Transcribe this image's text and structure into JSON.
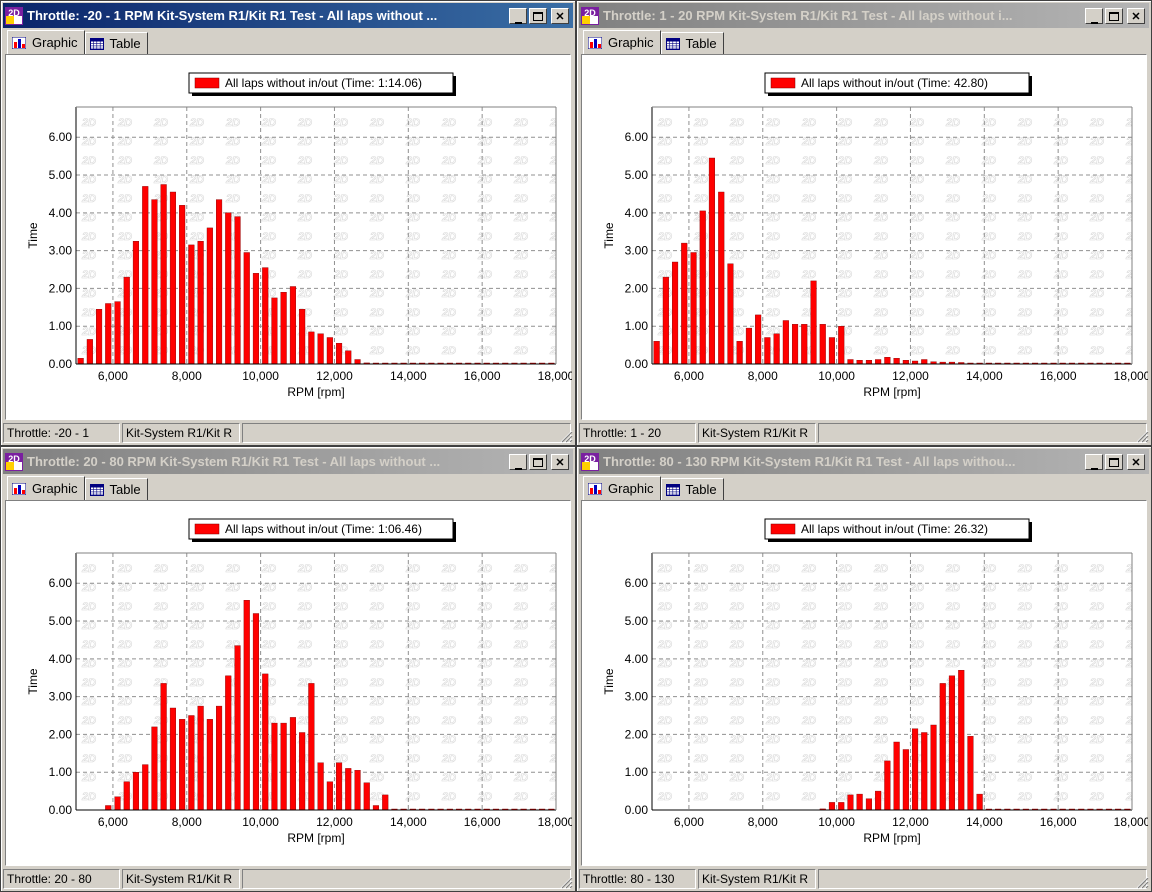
{
  "windows": [
    {
      "title": "Throttle: -20 - 1   RPM   Kit-System R1/Kit R1 Test - All laps without ...",
      "active": true,
      "tabs": [
        {
          "label": "Graphic",
          "active": true
        },
        {
          "label": "Table",
          "active": false
        }
      ],
      "status": [
        "Throttle: -20 - 1",
        "Kit-System R1/Kit R"
      ],
      "chart_data": {
        "type": "bar",
        "legend": "All laps without in/out (Time: 1:14.06)",
        "xlabel": "RPM [rpm]",
        "ylabel": "Time",
        "xlim": [
          5000,
          18000
        ],
        "ylim": [
          0,
          6.8
        ],
        "xticks": [
          6000,
          8000,
          10000,
          12000,
          14000,
          16000,
          18000
        ],
        "xtick_labels": [
          "6,000",
          "8,000",
          "10,000",
          "12,000",
          "14,000",
          "16,000",
          "18,000"
        ],
        "yticks": [
          0,
          1,
          2,
          3,
          4,
          5,
          6
        ],
        "ytick_labels": [
          "0.00",
          "1.00",
          "2.00",
          "3.00",
          "4.00",
          "5.00",
          "6.00"
        ],
        "bar_color": "#ff0000",
        "x": [
          5125,
          5375,
          5625,
          5875,
          6125,
          6375,
          6625,
          6875,
          7125,
          7375,
          7625,
          7875,
          8125,
          8375,
          8625,
          8875,
          9125,
          9375,
          9625,
          9875,
          10125,
          10375,
          10625,
          10875,
          11125,
          11375,
          11625,
          11875,
          12125,
          12375,
          12625,
          12875,
          13125,
          13375,
          13625,
          13875,
          14125,
          14375,
          14625,
          14875,
          15125,
          15375,
          15625,
          15875,
          16125,
          16375,
          16625,
          16875,
          17125,
          17375,
          17625,
          17875
        ],
        "values": [
          0.15,
          0.65,
          1.45,
          1.6,
          1.65,
          2.3,
          3.25,
          4.7,
          4.35,
          4.75,
          4.55,
          4.2,
          3.15,
          3.25,
          3.6,
          4.35,
          4.0,
          3.9,
          2.95,
          2.4,
          2.55,
          1.75,
          1.9,
          2.05,
          1.45,
          0.85,
          0.8,
          0.7,
          0.55,
          0.35,
          0.12,
          0.03,
          0.02,
          0.01,
          0.01,
          0.01,
          0.01,
          0.01,
          0.01,
          0.01,
          0.01,
          0.01,
          0.01,
          0.01,
          0.01,
          0.01,
          0.01,
          0.01,
          0.01,
          0.01,
          0.01,
          0.01
        ]
      }
    },
    {
      "title": "Throttle: 1 - 20   RPM   Kit-System R1/Kit R1 Test - All laps without i...",
      "active": false,
      "tabs": [
        {
          "label": "Graphic",
          "active": true
        },
        {
          "label": "Table",
          "active": false
        }
      ],
      "status": [
        "Throttle: 1 - 20",
        "Kit-System R1/Kit R"
      ],
      "chart_data": {
        "type": "bar",
        "legend": "All laps without in/out (Time: 42.80)",
        "xlabel": "RPM [rpm]",
        "ylabel": "Time",
        "xlim": [
          5000,
          18000
        ],
        "ylim": [
          0,
          6.8
        ],
        "xticks": [
          6000,
          8000,
          10000,
          12000,
          14000,
          16000,
          18000
        ],
        "xtick_labels": [
          "6,000",
          "8,000",
          "10,000",
          "12,000",
          "14,000",
          "16,000",
          "18,000"
        ],
        "yticks": [
          0,
          1,
          2,
          3,
          4,
          5,
          6
        ],
        "ytick_labels": [
          "0.00",
          "1.00",
          "2.00",
          "3.00",
          "4.00",
          "5.00",
          "6.00"
        ],
        "bar_color": "#ff0000",
        "x": [
          5125,
          5375,
          5625,
          5875,
          6125,
          6375,
          6625,
          6875,
          7125,
          7375,
          7625,
          7875,
          8125,
          8375,
          8625,
          8875,
          9125,
          9375,
          9625,
          9875,
          10125,
          10375,
          10625,
          10875,
          11125,
          11375,
          11625,
          11875,
          12125,
          12375,
          12625,
          12875,
          13125,
          13375,
          13625,
          13875,
          14125,
          14375,
          14625,
          14875,
          15125,
          15375,
          15625,
          15875,
          16125,
          16375,
          16625,
          16875,
          17125,
          17375,
          17625,
          17875
        ],
        "values": [
          0.6,
          2.3,
          2.7,
          3.2,
          2.95,
          4.05,
          5.45,
          4.55,
          2.65,
          0.6,
          0.95,
          1.3,
          0.7,
          0.8,
          1.15,
          1.05,
          1.05,
          2.2,
          1.05,
          0.7,
          1.0,
          0.12,
          0.1,
          0.1,
          0.12,
          0.18,
          0.15,
          0.1,
          0.08,
          0.12,
          0.06,
          0.05,
          0.05,
          0.04,
          0.02,
          0.01,
          0.01,
          0.01,
          0.01,
          0.01,
          0.01,
          0.01,
          0.01,
          0.01,
          0.01,
          0.01,
          0.01,
          0.01,
          0.01,
          0.01,
          0.01,
          0.01
        ]
      }
    },
    {
      "title": "Throttle: 20 - 80   RPM   Kit-System R1/Kit R1 Test - All laps without ...",
      "active": false,
      "tabs": [
        {
          "label": "Graphic",
          "active": true
        },
        {
          "label": "Table",
          "active": false
        }
      ],
      "status": [
        "Throttle: 20 - 80",
        "Kit-System R1/Kit R"
      ],
      "chart_data": {
        "type": "bar",
        "legend": "All laps without in/out (Time: 1:06.46)",
        "xlabel": "RPM [rpm]",
        "ylabel": "Time",
        "xlim": [
          5000,
          18000
        ],
        "ylim": [
          0,
          6.8
        ],
        "xticks": [
          6000,
          8000,
          10000,
          12000,
          14000,
          16000,
          18000
        ],
        "xtick_labels": [
          "6,000",
          "8,000",
          "10,000",
          "12,000",
          "14,000",
          "16,000",
          "18,000"
        ],
        "yticks": [
          0,
          1,
          2,
          3,
          4,
          5,
          6
        ],
        "ytick_labels": [
          "0.00",
          "1.00",
          "2.00",
          "3.00",
          "4.00",
          "5.00",
          "6.00"
        ],
        "bar_color": "#ff0000",
        "x": [
          5875,
          6125,
          6375,
          6625,
          6875,
          7125,
          7375,
          7625,
          7875,
          8125,
          8375,
          8625,
          8875,
          9125,
          9375,
          9625,
          9875,
          10125,
          10375,
          10625,
          10875,
          11125,
          11375,
          11625,
          11875,
          12125,
          12375,
          12625,
          12875,
          13125,
          13375,
          13625,
          13875,
          14125,
          14375,
          14625,
          14875,
          15125,
          15375,
          15625,
          15875,
          16125,
          16375,
          16625,
          16875,
          17125,
          17375,
          17625,
          17875
        ],
        "values": [
          0.12,
          0.35,
          0.75,
          1.0,
          1.2,
          2.2,
          3.35,
          2.7,
          2.4,
          2.5,
          2.75,
          2.4,
          2.75,
          3.55,
          4.35,
          5.55,
          5.2,
          3.6,
          2.3,
          2.3,
          2.45,
          2.05,
          3.35,
          1.25,
          0.75,
          1.25,
          1.1,
          1.05,
          0.72,
          0.12,
          0.4,
          0.01,
          0.01,
          0.01,
          0.01,
          0.01,
          0.01,
          0.01,
          0.01,
          0.01,
          0.01,
          0.01,
          0.01,
          0.01,
          0.01,
          0.01,
          0.01,
          0.01,
          0.01
        ]
      }
    },
    {
      "title": "Throttle: 80 - 130   RPM   Kit-System R1/Kit R1 Test - All laps withou...",
      "active": false,
      "tabs": [
        {
          "label": "Graphic",
          "active": true
        },
        {
          "label": "Table",
          "active": false
        }
      ],
      "status": [
        "Throttle: 80 - 130",
        "Kit-System R1/Kit R"
      ],
      "chart_data": {
        "type": "bar",
        "legend": "All laps without in/out (Time: 26.32)",
        "xlabel": "RPM [rpm]",
        "ylabel": "Time",
        "xlim": [
          5000,
          18000
        ],
        "ylim": [
          0,
          6.8
        ],
        "xticks": [
          6000,
          8000,
          10000,
          12000,
          14000,
          16000,
          18000
        ],
        "xtick_labels": [
          "6,000",
          "8,000",
          "10,000",
          "12,000",
          "14,000",
          "16,000",
          "18,000"
        ],
        "yticks": [
          0,
          1,
          2,
          3,
          4,
          5,
          6
        ],
        "ytick_labels": [
          "0.00",
          "1.00",
          "2.00",
          "3.00",
          "4.00",
          "5.00",
          "6.00"
        ],
        "bar_color": "#ff0000",
        "x": [
          9625,
          9875,
          10125,
          10375,
          10625,
          10875,
          11125,
          11375,
          11625,
          11875,
          12125,
          12375,
          12625,
          12875,
          13125,
          13375,
          13625,
          13875,
          14125,
          14375,
          14625,
          14875,
          15125,
          15375,
          15625,
          15875,
          16125,
          16375,
          16625,
          16875,
          17125,
          17375,
          17625,
          17875
        ],
        "values": [
          0.03,
          0.2,
          0.2,
          0.4,
          0.42,
          0.3,
          0.5,
          1.3,
          1.8,
          1.6,
          2.15,
          2.05,
          2.25,
          3.35,
          3.55,
          3.7,
          1.95,
          0.42,
          0.01,
          0.01,
          0.01,
          0.01,
          0.01,
          0.01,
          0.01,
          0.01,
          0.01,
          0.01,
          0.01,
          0.01,
          0.01,
          0.01,
          0.01,
          0.01
        ]
      }
    }
  ]
}
